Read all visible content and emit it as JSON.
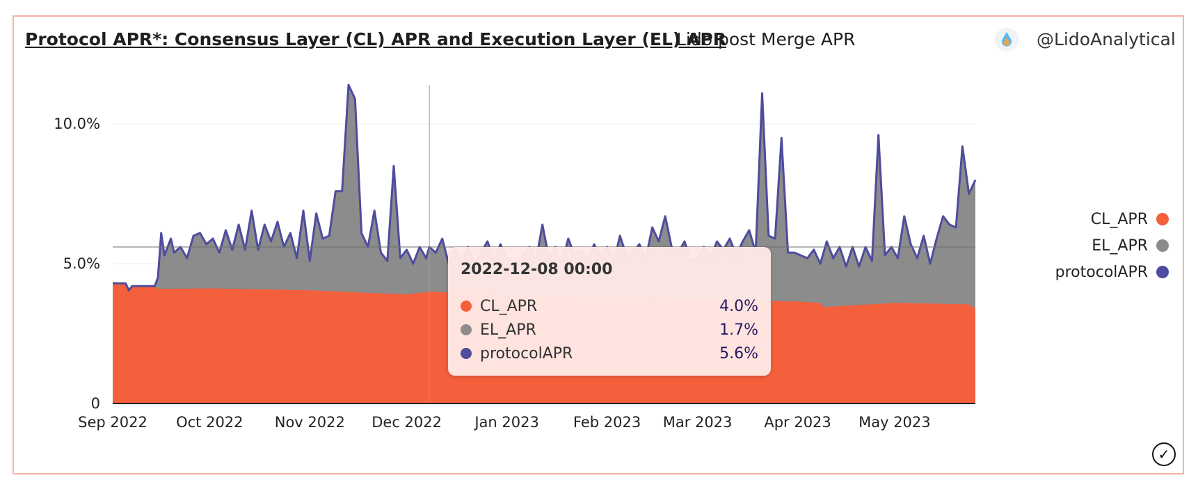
{
  "header": {
    "title": "Protocol APR*: Consensus Layer (CL) APR and Execution Layer (EL) APR",
    "subtitle": "Lido post Merge APR",
    "author": "@LidoAnalytical"
  },
  "colors": {
    "cl": "#f45f3c",
    "el": "#8c8c8c",
    "protocol": "#4d4c9d",
    "panel_border": "#f6b2a6"
  },
  "tooltip": {
    "title": "2022-12-08 00:00",
    "rows": [
      {
        "label": "CL_APR",
        "value": "4.0%"
      },
      {
        "label": "EL_APR",
        "value": "1.7%"
      },
      {
        "label": "protocolAPR",
        "value": "5.6%"
      }
    ]
  },
  "chart_data": {
    "type": "area",
    "title": "Protocol APR*: Consensus Layer (CL) APR and Execution Layer (EL) APR",
    "x_unit": "date",
    "x_range": [
      "2022-09-01",
      "2023-05-26"
    ],
    "x_ticks": [
      {
        "date": "2022-09-01",
        "label": "Sep 2022"
      },
      {
        "date": "2022-10-01",
        "label": "Oct 2022"
      },
      {
        "date": "2022-11-01",
        "label": "Nov 2022"
      },
      {
        "date": "2022-12-01",
        "label": "Dec 2022"
      },
      {
        "date": "2023-01-01",
        "label": "Jan 2023"
      },
      {
        "date": "2023-02-01",
        "label": "Feb 2023"
      },
      {
        "date": "2023-03-01",
        "label": "Mar 2023"
      },
      {
        "date": "2023-04-01",
        "label": "Apr 2023"
      },
      {
        "date": "2023-05-01",
        "label": "May 2023"
      }
    ],
    "y_ticks": [
      {
        "value": 0,
        "label": "0"
      },
      {
        "value": 5,
        "label": "5.0%"
      },
      {
        "value": 10,
        "label": "10.0%"
      }
    ],
    "ylim": [
      0,
      11.4
    ],
    "grid": true,
    "legend": "right",
    "stacked": true,
    "highlight": {
      "date": "2022-12-08",
      "value": 5.6
    },
    "series": [
      {
        "name": "CL_APR",
        "x": [
          "2022-09-01",
          "2022-09-05",
          "2022-09-06",
          "2022-09-07",
          "2022-09-14",
          "2022-09-15",
          "2022-10-01",
          "2022-11-01",
          "2022-12-01",
          "2022-12-08",
          "2023-01-01",
          "2023-02-01",
          "2023-03-01",
          "2023-04-01",
          "2023-04-08",
          "2023-04-09",
          "2023-05-01",
          "2023-05-24",
          "2023-05-26"
        ],
        "values": [
          4.35,
          4.3,
          4.05,
          4.2,
          4.2,
          4.1,
          4.12,
          4.05,
          3.9,
          4.0,
          3.88,
          3.8,
          3.72,
          3.65,
          3.6,
          3.45,
          3.6,
          3.55,
          3.4
        ]
      },
      {
        "name": "protocolAPR",
        "x": [
          "2022-09-01",
          "2022-09-05",
          "2022-09-06",
          "2022-09-07",
          "2022-09-14",
          "2022-09-15",
          "2022-09-16",
          "2022-09-17",
          "2022-09-19",
          "2022-09-20",
          "2022-09-22",
          "2022-09-24",
          "2022-09-26",
          "2022-09-28",
          "2022-09-30",
          "2022-10-02",
          "2022-10-04",
          "2022-10-06",
          "2022-10-08",
          "2022-10-10",
          "2022-10-12",
          "2022-10-14",
          "2022-10-16",
          "2022-10-18",
          "2022-10-20",
          "2022-10-22",
          "2022-10-24",
          "2022-10-26",
          "2022-10-28",
          "2022-10-30",
          "2022-11-01",
          "2022-11-03",
          "2022-11-05",
          "2022-11-07",
          "2022-11-09",
          "2022-11-11",
          "2022-11-13",
          "2022-11-15",
          "2022-11-17",
          "2022-11-19",
          "2022-11-21",
          "2022-11-23",
          "2022-11-25",
          "2022-11-27",
          "2022-11-29",
          "2022-12-01",
          "2022-12-03",
          "2022-12-05",
          "2022-12-07",
          "2022-12-08",
          "2022-12-10",
          "2022-12-12",
          "2022-12-14",
          "2022-12-16",
          "2022-12-18",
          "2022-12-20",
          "2022-12-22",
          "2022-12-24",
          "2022-12-26",
          "2022-12-28",
          "2022-12-30",
          "2023-01-01",
          "2023-01-04",
          "2023-01-06",
          "2023-01-08",
          "2023-01-10",
          "2023-01-12",
          "2023-01-14",
          "2023-01-16",
          "2023-01-18",
          "2023-01-20",
          "2023-01-22",
          "2023-01-24",
          "2023-01-26",
          "2023-01-28",
          "2023-01-30",
          "2023-02-01",
          "2023-02-03",
          "2023-02-05",
          "2023-02-07",
          "2023-02-09",
          "2023-02-11",
          "2023-02-13",
          "2023-02-15",
          "2023-02-17",
          "2023-02-19",
          "2023-02-21",
          "2023-02-23",
          "2023-02-25",
          "2023-02-27",
          "2023-03-01",
          "2023-03-03",
          "2023-03-05",
          "2023-03-07",
          "2023-03-09",
          "2023-03-11",
          "2023-03-13",
          "2023-03-15",
          "2023-03-17",
          "2023-03-19",
          "2023-03-21",
          "2023-03-23",
          "2023-03-25",
          "2023-03-27",
          "2023-03-29",
          "2023-03-31",
          "2023-04-02",
          "2023-04-04",
          "2023-04-06",
          "2023-04-08",
          "2023-04-10",
          "2023-04-12",
          "2023-04-14",
          "2023-04-16",
          "2023-04-18",
          "2023-04-20",
          "2023-04-22",
          "2023-04-24",
          "2023-04-26",
          "2023-04-28",
          "2023-04-30",
          "2023-05-02",
          "2023-05-04",
          "2023-05-06",
          "2023-05-08",
          "2023-05-10",
          "2023-05-12",
          "2023-05-14",
          "2023-05-16",
          "2023-05-18",
          "2023-05-20",
          "2023-05-22",
          "2023-05-24",
          "2023-05-26"
        ],
        "values": [
          4.3,
          4.3,
          4.05,
          4.2,
          4.2,
          4.5,
          6.1,
          5.3,
          5.9,
          5.4,
          5.6,
          5.2,
          6.0,
          6.1,
          5.7,
          5.9,
          5.4,
          6.2,
          5.5,
          6.4,
          5.5,
          6.9,
          5.5,
          6.4,
          5.8,
          6.5,
          5.6,
          6.1,
          5.2,
          6.9,
          5.1,
          6.8,
          5.9,
          6.0,
          7.6,
          7.6,
          11.4,
          10.9,
          6.1,
          5.6,
          6.9,
          5.4,
          5.1,
          8.5,
          5.2,
          5.5,
          5.0,
          5.6,
          5.2,
          5.6,
          5.4,
          5.9,
          5.0,
          5.5,
          5.1,
          5.6,
          5.0,
          5.4,
          5.8,
          5.1,
          5.7,
          5.2,
          5.0,
          5.3,
          5.6,
          5.1,
          6.4,
          5.2,
          5.6,
          5.0,
          5.9,
          5.3,
          5.5,
          5.1,
          5.7,
          5.2,
          5.6,
          5.0,
          6.0,
          5.3,
          5.4,
          5.7,
          5.2,
          6.3,
          5.8,
          6.7,
          5.6,
          5.4,
          5.8,
          5.1,
          5.2,
          5.6,
          5.2,
          5.8,
          5.5,
          5.9,
          5.3,
          5.8,
          6.2,
          5.4,
          11.1,
          6.0,
          5.9,
          9.5,
          5.4,
          5.4,
          5.3,
          5.2,
          5.5,
          5.0,
          5.8,
          5.2,
          5.6,
          4.9,
          5.6,
          4.9,
          5.6,
          5.1,
          9.6,
          5.3,
          5.6,
          5.2,
          6.7,
          5.7,
          5.2,
          6.0,
          5.0,
          5.9,
          6.7,
          6.4,
          6.3,
          9.2,
          7.5,
          8.0
        ]
      }
    ]
  }
}
